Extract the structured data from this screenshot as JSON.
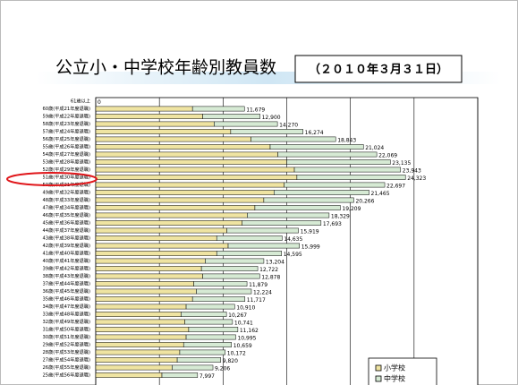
{
  "chart_data": {
    "type": "stacked-barh",
    "title": "公立小・中学校年齢別教員数",
    "subtitle": "（２０１０年３月３１日）",
    "categories": [
      "61歳以上",
      "60歳(平成21年度退職)",
      "59歳(平成22年度退職)",
      "58歳(平成23年度退職)",
      "57歳(平成24年度退職)",
      "56歳(平成25年度退職)",
      "55歳(平成26年度退職)",
      "54歳(平成27年度退職)",
      "53歳(平成28年度退職)",
      "52歳(平成29年度退職)",
      "51歳(平成30年度退職)",
      "50歳(平成31年度退職)",
      "49歳(平成32年度退職)",
      "48歳(平成33年度退職)",
      "47歳(平成34年度退職)",
      "46歳(平成35年度退職)",
      "45歳(平成36年度退職)",
      "44歳(平成37年度退職)",
      "43歳(平成38年度退職)",
      "42歳(平成39年度退職)",
      "41歳(平成40年度退職)",
      "40歳(平成41年度退職)",
      "39歳(平成42年度退職)",
      "38歳(平成43年度退職)",
      "37歳(平成44年度退職)",
      "36歳(平成45年度退職)",
      "35歳(平成46年度退職)",
      "34歳(平成47年度退職)",
      "33歳(平成48年度退職)",
      "32歳(平成49年度退職)",
      "31歳(平成50年度退職)",
      "30歳(平成51年度退職)",
      "29歳(平成52年度退職)",
      "28歳(平成53年度退職)",
      "27歳(平成54年度退職)",
      "26歳(平成55年度退職)",
      "25歳(平成56年度退職)"
    ],
    "series": [
      {
        "name": "小学校",
        "color": "#efe4a2",
        "values": [
          0,
          7600,
          8400,
          9300,
          10600,
          12200,
          13700,
          14300,
          15000,
          15600,
          15800,
          14800,
          14000,
          13200,
          12500,
          11900,
          11500,
          10300,
          9500,
          10400,
          9500,
          8600,
          8300,
          8400,
          7700,
          7900,
          7600,
          7100,
          6700,
          7000,
          7300,
          7100,
          6900,
          6600,
          6400,
          6000,
          5200
        ]
      },
      {
        "name": "中学校",
        "color": "#d6ead4",
        "values": [
          0,
          4079,
          4500,
          4970,
          5674,
          6643,
          7324,
          7769,
          8135,
          8343,
          8523,
          7897,
          7465,
          7066,
          6709,
          6429,
          6193,
          5619,
          5135,
          5599,
          5095,
          4604,
          4422,
          4478,
          4179,
          4324,
          4117,
          3810,
          3567,
          3741,
          3862,
          3895,
          3759,
          3572,
          3420,
          3206,
          2797
        ]
      }
    ],
    "totals": [
      0,
      11679,
      12900,
      14270,
      16274,
      18843,
      21024,
      22069,
      23135,
      23943,
      24323,
      22697,
      21465,
      20266,
      19209,
      18329,
      17693,
      15919,
      14635,
      15999,
      14595,
      13204,
      12722,
      12878,
      11879,
      12224,
      11717,
      10910,
      10267,
      10741,
      11162,
      10995,
      10659,
      10172,
      9820,
      9206,
      7997
    ],
    "total_labels": [
      "0",
      "11,679",
      "12,900",
      "14,270",
      "16,274",
      "18,843",
      "21,024",
      "22,069",
      "23,135",
      "23,943",
      "24,323",
      "22,697",
      "21,465",
      "20,266",
      "19,209",
      "18,329",
      "17,693",
      "15,919",
      "14,635",
      "15,999",
      "14,595",
      "13,204",
      "12,722",
      "12,878",
      "11,879",
      "12,224",
      "11,717",
      "10,910",
      "10,267",
      "10,741",
      "11,162",
      "10,995",
      "10,659",
      "10,172",
      "9,820",
      "9,206",
      "7,997"
    ],
    "xlim": [
      0,
      30000
    ],
    "xticks": [
      0,
      5000,
      10000,
      15000,
      20000,
      25000,
      30000
    ],
    "grid": true
  }
}
